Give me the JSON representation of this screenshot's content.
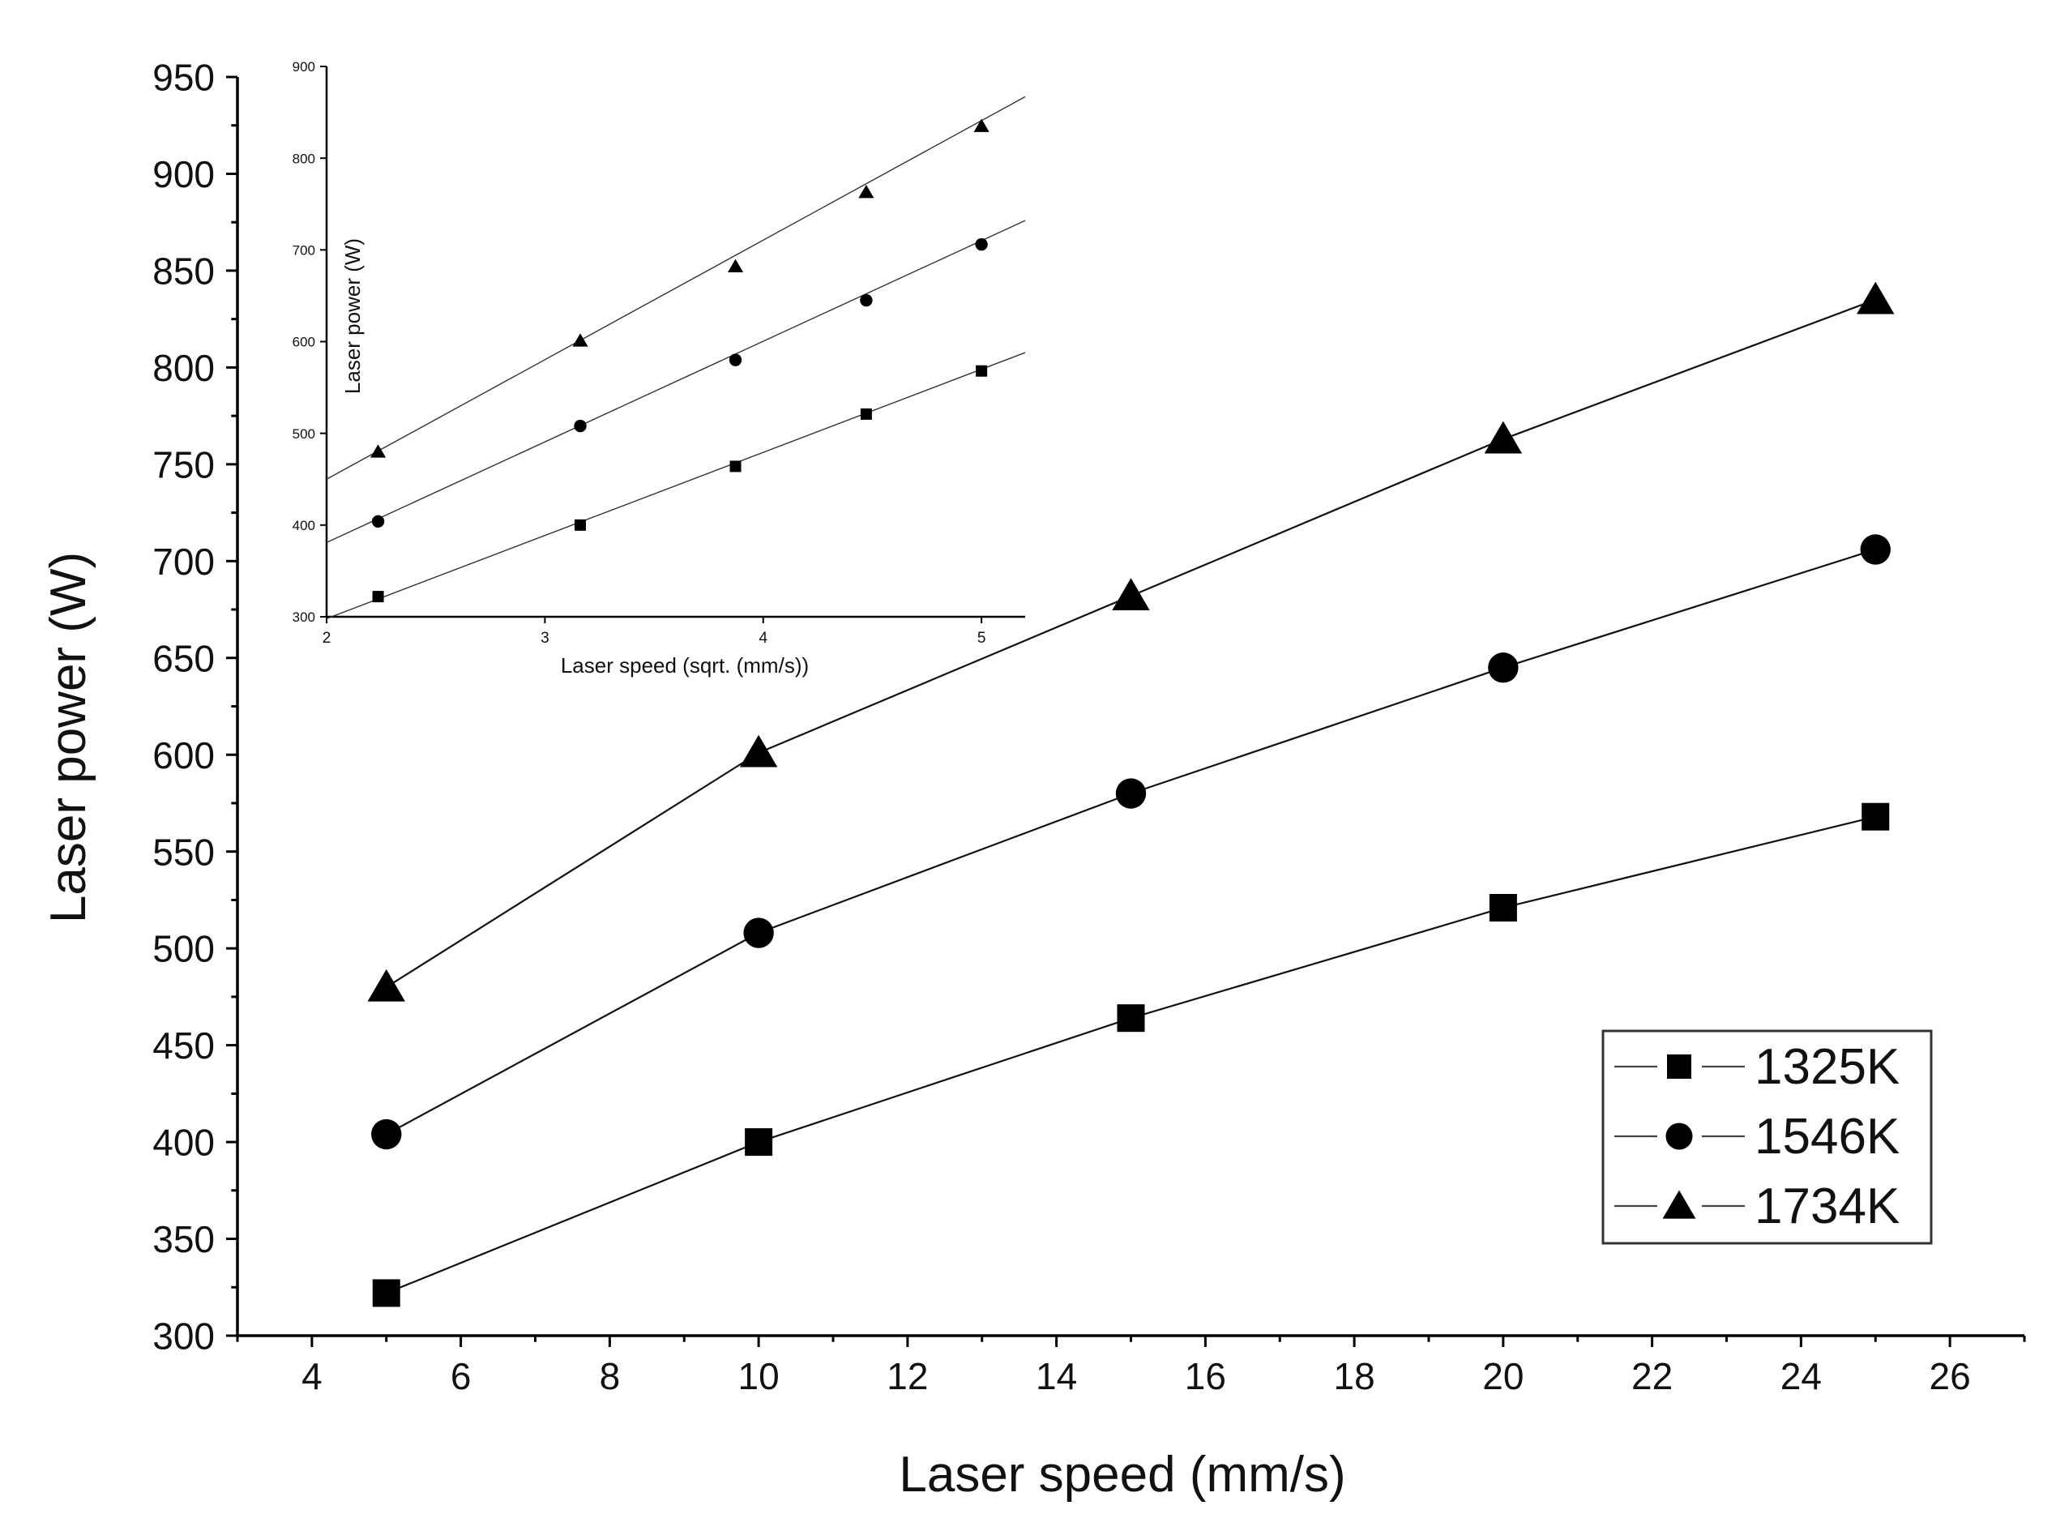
{
  "chart_data": [
    {
      "type": "line",
      "role": "main",
      "xlabel": "Laser speed (mm/s)",
      "ylabel": "Laser power (W)",
      "xlim": [
        3,
        27
      ],
      "ylim": [
        300,
        950
      ],
      "xticks": [
        4,
        6,
        8,
        10,
        12,
        14,
        16,
        18,
        20,
        22,
        24,
        26
      ],
      "yticks": [
        300,
        350,
        400,
        450,
        500,
        550,
        600,
        650,
        700,
        750,
        800,
        850,
        900,
        950
      ],
      "grid": false,
      "legend_position": "bottom-right",
      "series": [
        {
          "name": "1325K",
          "marker": "square",
          "x": [
            5,
            10,
            15,
            20,
            25
          ],
          "y": [
            322,
            400,
            464,
            521,
            568
          ]
        },
        {
          "name": "1546K",
          "marker": "circle",
          "x": [
            5,
            10,
            15,
            20,
            25
          ],
          "y": [
            404,
            508,
            580,
            645,
            706
          ]
        },
        {
          "name": "1734K",
          "marker": "triangle",
          "x": [
            5,
            10,
            15,
            20,
            25
          ],
          "y": [
            480,
            601,
            682,
            763,
            835
          ]
        }
      ]
    },
    {
      "type": "scatter",
      "role": "inset",
      "xlabel": "Laser speed (sqrt. (mm/s))",
      "ylabel": "Laser power (W)",
      "xlim": [
        2,
        5.2
      ],
      "ylim": [
        300,
        900
      ],
      "xticks": [
        2,
        3,
        4,
        5
      ],
      "yticks": [
        300,
        400,
        500,
        600,
        700,
        800,
        900
      ],
      "grid": false,
      "fit": "linear",
      "series": [
        {
          "name": "1325K",
          "marker": "square",
          "x": [
            2.236,
            3.162,
            3.873,
            4.472,
            5.0
          ],
          "y": [
            322,
            400,
            464,
            521,
            568
          ],
          "fit_line": {
            "x": [
              2,
              5.2
            ],
            "y": [
              298,
              588
            ]
          }
        },
        {
          "name": "1546K",
          "marker": "circle",
          "x": [
            2.236,
            3.162,
            3.873,
            4.472,
            5.0
          ],
          "y": [
            404,
            508,
            580,
            645,
            706
          ],
          "fit_line": {
            "x": [
              2,
              5.2
            ],
            "y": [
              381,
              732
            ]
          }
        },
        {
          "name": "1734K",
          "marker": "triangle",
          "x": [
            2.236,
            3.162,
            3.873,
            4.472,
            5.0
          ],
          "y": [
            480,
            601,
            682,
            763,
            835
          ],
          "fit_line": {
            "x": [
              2,
              5.2
            ],
            "y": [
              450,
              867
            ]
          }
        }
      ]
    }
  ]
}
